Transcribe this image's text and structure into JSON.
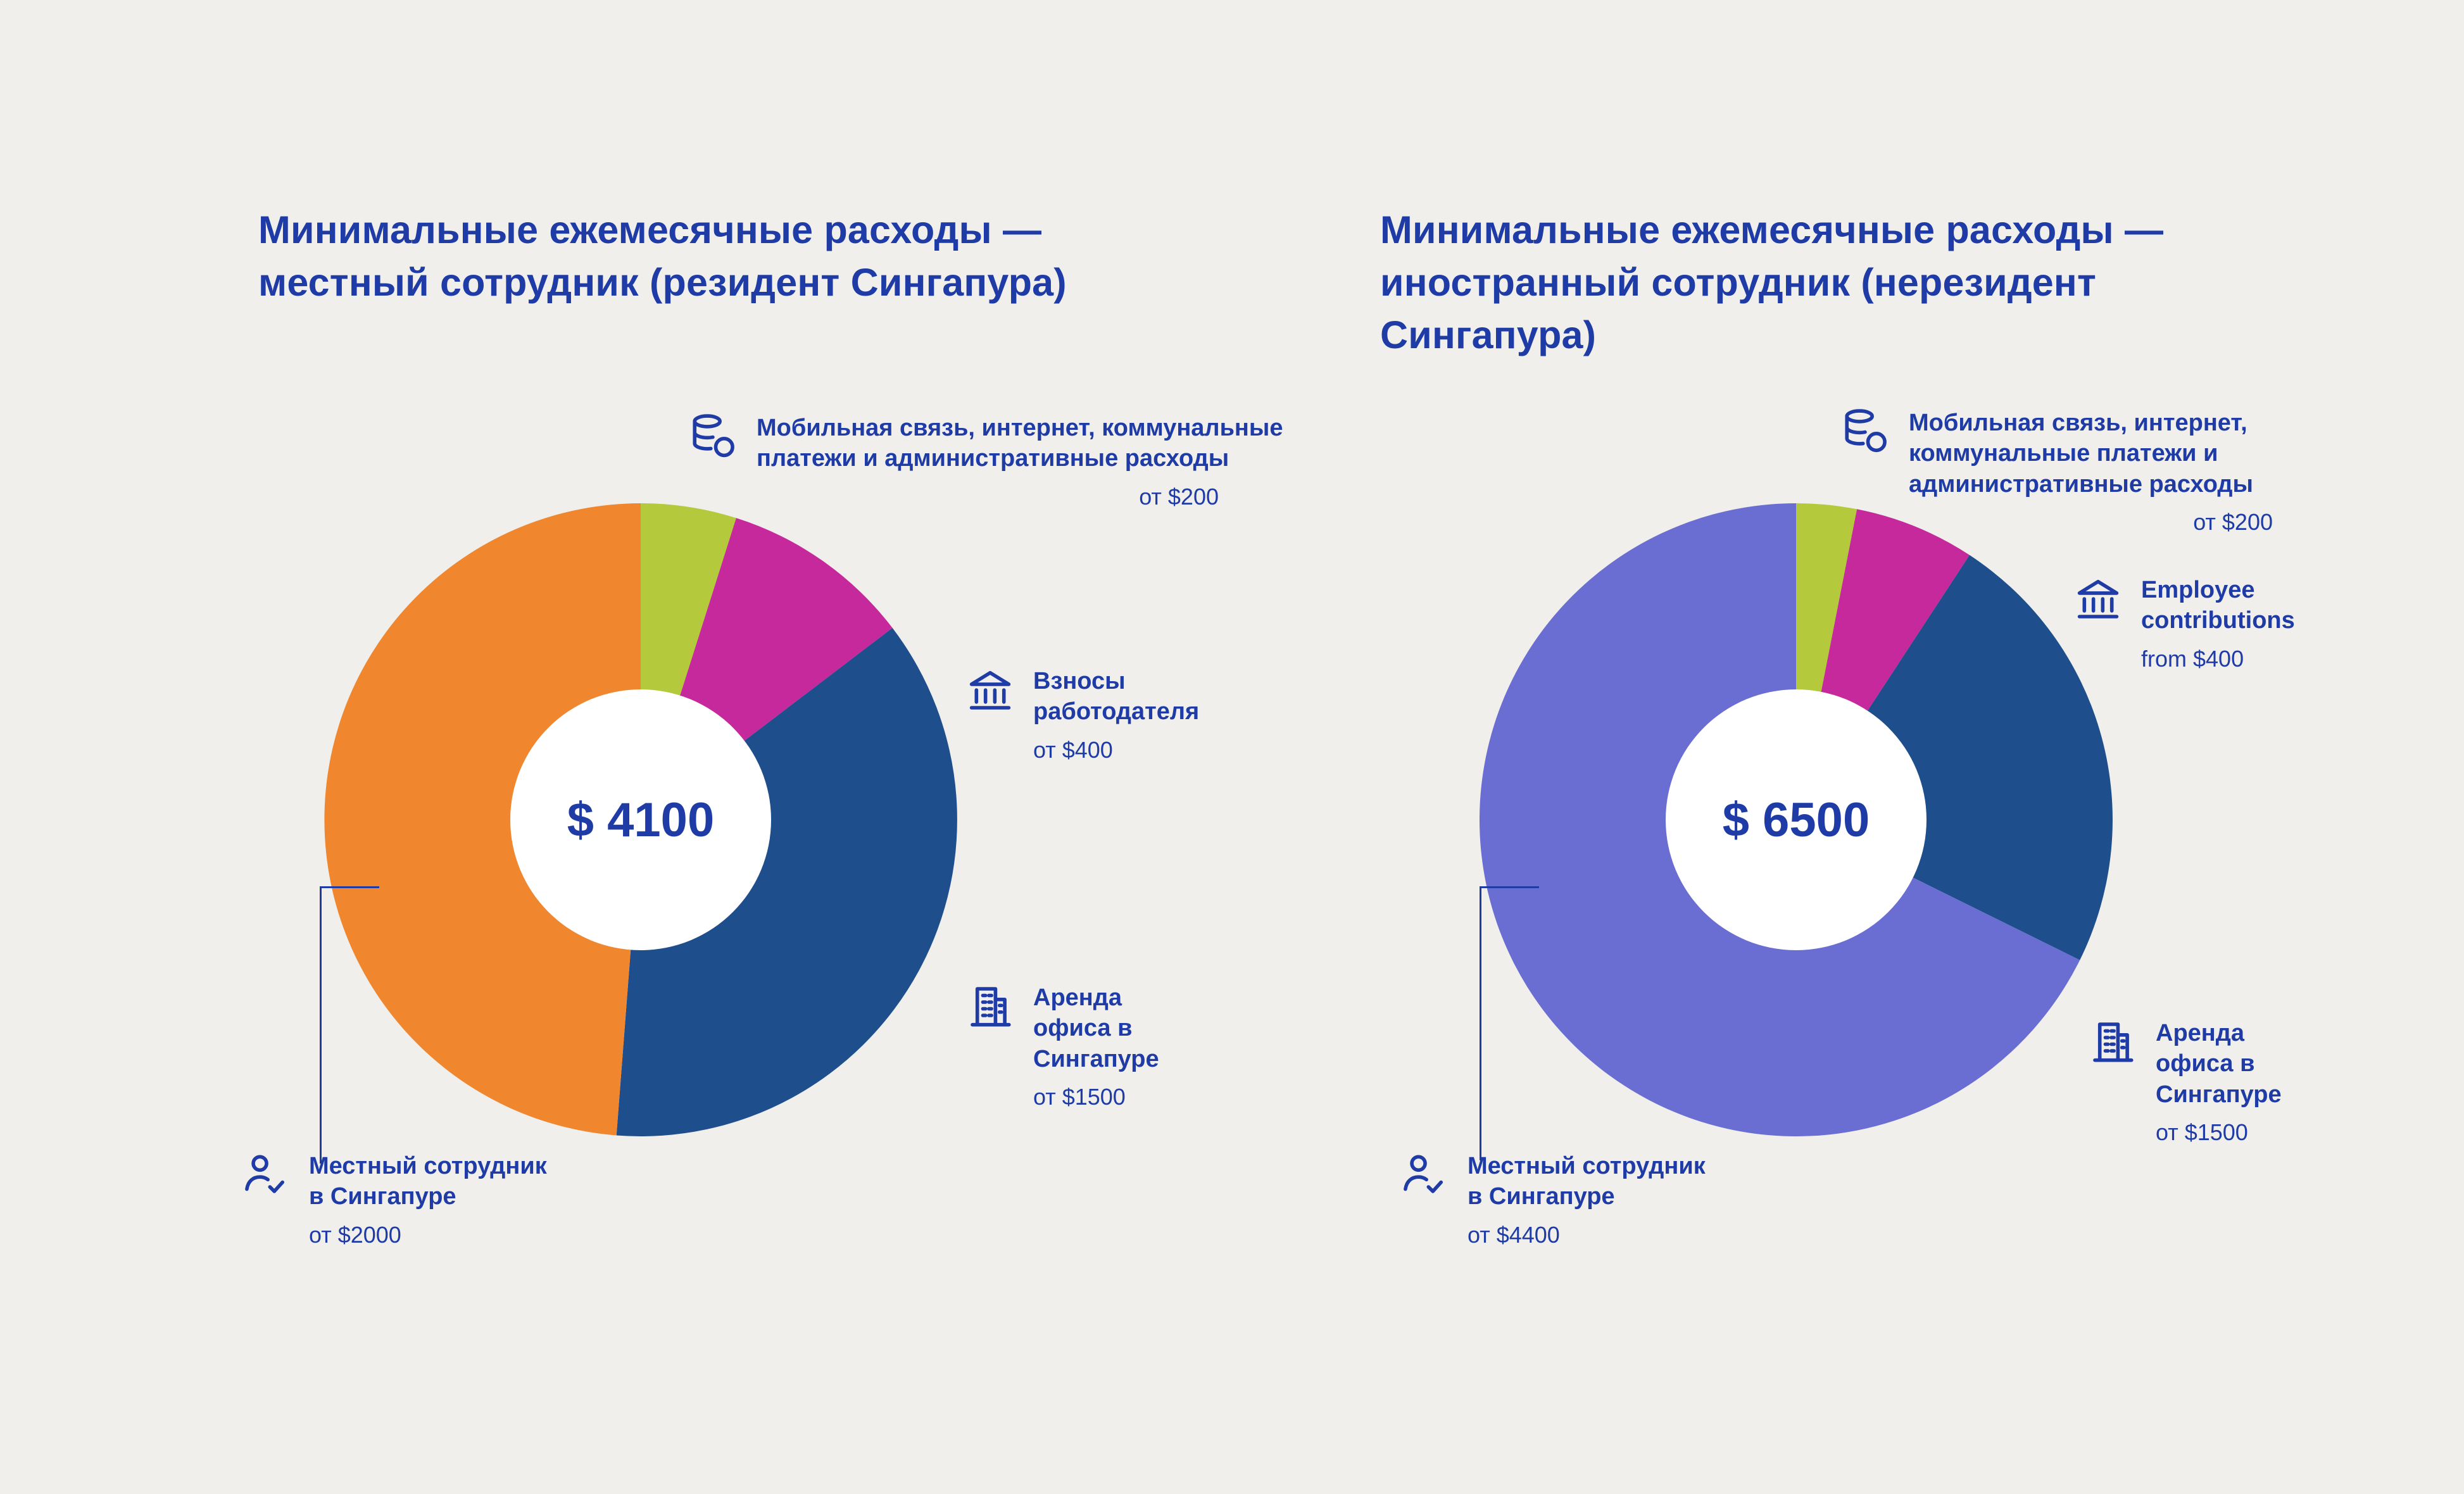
{
  "page": {
    "background_color": "#f0efec",
    "accent_color": "#1f3ba5",
    "donut_hole_color": "#ffffff"
  },
  "chart_data": [
    {
      "type": "pie",
      "variant": "donut",
      "title": "Минимальные ежемесячные расходы — местный сотрудник (резидент Сингапура)",
      "center_label": "$ 4100",
      "total": 4100,
      "segments": [
        {
          "name": "Мобильная связь, интернет, коммунальные платежи и административные расходы",
          "value": 200,
          "amount_label": "от $200",
          "color": "#b4ca3c",
          "icon": "coins-icon"
        },
        {
          "name": "Взносы работодателя",
          "value": 400,
          "amount_label": "от $400",
          "color": "#c5299b",
          "icon": "bank-icon"
        },
        {
          "name": "Аренда офиса в Сингапуре",
          "value": 1500,
          "amount_label": "от $1500",
          "color": "#1e4e8c",
          "icon": "office-building-icon"
        },
        {
          "name": "Местный сотрудник в Сингапуре",
          "value": 2000,
          "amount_label": "от $2000",
          "color": "#f0862e",
          "icon": "person-check-icon"
        }
      ]
    },
    {
      "type": "pie",
      "variant": "donut",
      "title": "Минимальные ежемесячные расходы — иностранный сотрудник (нерезидент Сингапура)",
      "center_label": "$ 6500",
      "total": 6500,
      "segments": [
        {
          "name": "Мобильная связь, интернет, коммунальные платежи и административные расходы",
          "value": 200,
          "amount_label": "от $200",
          "color": "#b4ca3c",
          "icon": "coins-icon"
        },
        {
          "name": "Employee contributions",
          "value": 400,
          "amount_label": "from $400",
          "color": "#c5299b",
          "icon": "bank-icon"
        },
        {
          "name": "Аренда офиса в Сингапуре",
          "value": 1500,
          "amount_label": "от $1500",
          "color": "#1e4e8c",
          "icon": "office-building-icon"
        },
        {
          "name": "Местный сотрудник в Сингапуре",
          "value": 4400,
          "amount_label": "от $4400",
          "color": "#6a6ed2",
          "icon": "person-check-icon"
        }
      ]
    }
  ]
}
